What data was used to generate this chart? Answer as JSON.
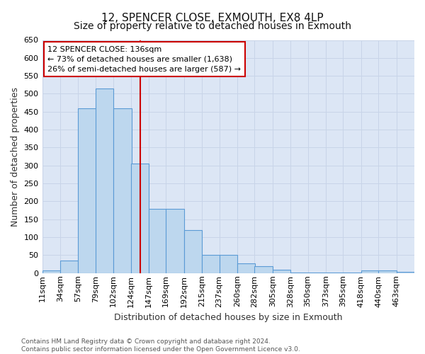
{
  "title": "12, SPENCER CLOSE, EXMOUTH, EX8 4LP",
  "subtitle": "Size of property relative to detached houses in Exmouth",
  "xlabel": "Distribution of detached houses by size in Exmouth",
  "ylabel": "Number of detached properties",
  "bins": [
    "11sqm",
    "34sqm",
    "57sqm",
    "79sqm",
    "102sqm",
    "124sqm",
    "147sqm",
    "169sqm",
    "192sqm",
    "215sqm",
    "237sqm",
    "260sqm",
    "282sqm",
    "305sqm",
    "328sqm",
    "350sqm",
    "373sqm",
    "395sqm",
    "418sqm",
    "440sqm",
    "463sqm"
  ],
  "bin_edges": [
    11,
    34,
    57,
    79,
    102,
    124,
    147,
    169,
    192,
    215,
    237,
    260,
    282,
    305,
    328,
    350,
    373,
    395,
    418,
    440,
    463
  ],
  "bin_width": 23,
  "values": [
    7,
    35,
    460,
    515,
    460,
    305,
    180,
    180,
    120,
    50,
    50,
    27,
    20,
    9,
    2,
    2,
    2,
    2,
    7,
    7,
    4
  ],
  "bar_color": "#bdd7ee",
  "bar_edge_color": "#5b9bd5",
  "property_line_x": 136,
  "property_line_color": "#cc0000",
  "annotation_line1": "12 SPENCER CLOSE: 136sqm",
  "annotation_line2": "← 73% of detached houses are smaller (1,638)",
  "annotation_line3": "26% of semi-detached houses are larger (587) →",
  "annotation_box_color": "#cc0000",
  "annotation_box_bg": "#ffffff",
  "ylim": [
    0,
    650
  ],
  "yticks": [
    0,
    50,
    100,
    150,
    200,
    250,
    300,
    350,
    400,
    450,
    500,
    550,
    600,
    650
  ],
  "grid_color": "#c8d4e8",
  "plot_bg_color": "#dce6f5",
  "fig_bg_color": "#ffffff",
  "title_fontsize": 11,
  "axis_label_fontsize": 9,
  "tick_fontsize": 8,
  "annot_fontsize": 8,
  "footer_text": "Contains HM Land Registry data © Crown copyright and database right 2024.\nContains public sector information licensed under the Open Government Licence v3.0."
}
